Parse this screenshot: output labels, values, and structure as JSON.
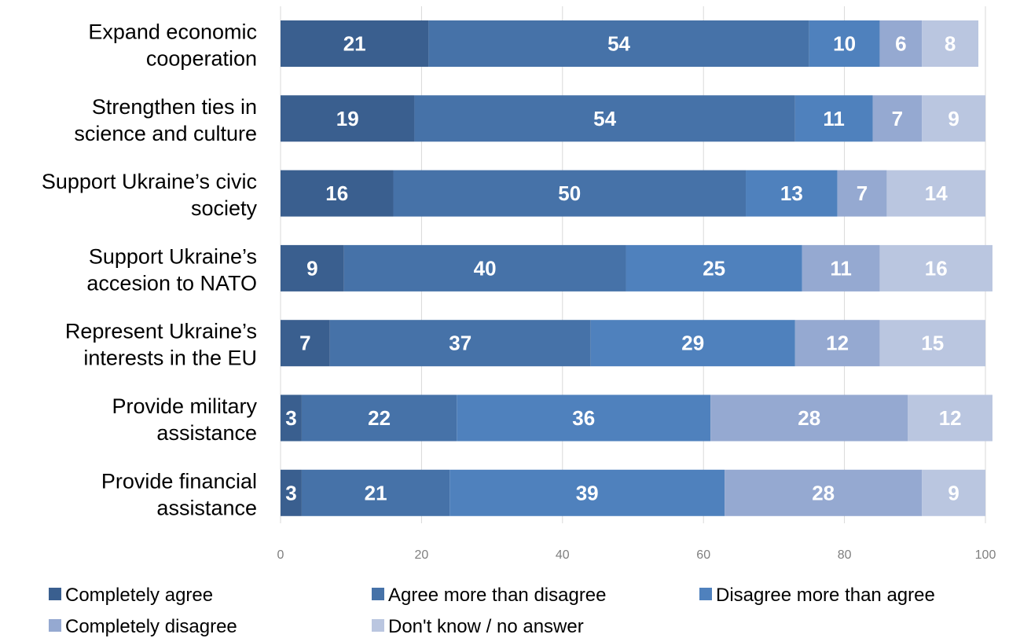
{
  "chart_data": {
    "type": "bar",
    "orientation": "horizontal",
    "stacked": true,
    "categories": [
      [
        "Expand economic",
        "cooperation"
      ],
      [
        "Strengthen ties in",
        "science and culture"
      ],
      [
        "Support Ukraine’s civic",
        "society"
      ],
      [
        "Support Ukraine’s",
        "accesion to NATO"
      ],
      [
        "Represent Ukraine’s",
        "interests in the EU"
      ],
      [
        "Provide military",
        "assistance"
      ],
      [
        "Provide financial",
        "assistance"
      ]
    ],
    "series": [
      {
        "name": "Completely agree",
        "color": "#3a5f8f",
        "values": [
          21,
          19,
          16,
          9,
          7,
          3,
          3
        ]
      },
      {
        "name": "Agree more than disagree",
        "color": "#4672a8",
        "values": [
          54,
          54,
          50,
          40,
          37,
          22,
          21
        ]
      },
      {
        "name": "Disagree more than agree",
        "color": "#4f81bd",
        "values": [
          10,
          11,
          13,
          25,
          29,
          36,
          39
        ]
      },
      {
        "name": "Completely disagree",
        "color": "#95a9d1",
        "values": [
          6,
          7,
          7,
          11,
          12,
          28,
          28
        ]
      },
      {
        "name": "Don't know / no answer",
        "color": "#bac6e0",
        "values": [
          8,
          9,
          14,
          16,
          15,
          12,
          9
        ]
      }
    ],
    "xlim": [
      0,
      100
    ],
    "xticks": [
      0,
      20,
      40,
      60,
      80,
      100
    ],
    "grid": true,
    "legend_position": "bottom"
  }
}
